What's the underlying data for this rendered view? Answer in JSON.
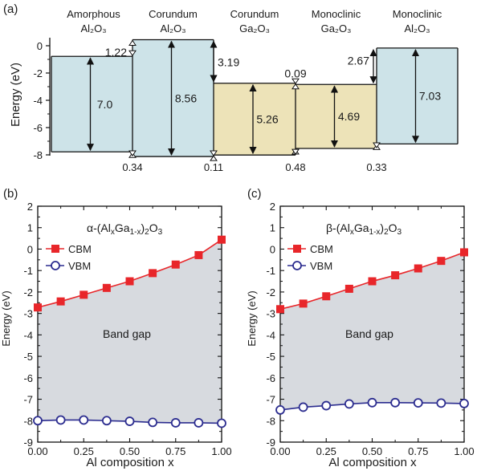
{
  "chart_data": [
    {
      "panel": "(a)",
      "type": "bar",
      "ylabel": "Energy (eV)",
      "ylim": [
        -8.4,
        0.5
      ],
      "yticks": [
        "0",
        "-2",
        "-4",
        "-6",
        "-8"
      ],
      "materials": [
        {
          "label_top": "Amorphous",
          "label_bottom": "Al₂O₃",
          "cbm": -0.78,
          "vbm": -7.78,
          "gap_label": "7.0",
          "color": "#cde3e8"
        },
        {
          "label_top": "Corundum",
          "label_bottom": "Al₂O₃",
          "cbm": 0.44,
          "vbm": -8.12,
          "gap_label": "8.56",
          "color": "#cde3e8"
        },
        {
          "label_top": "Corundum",
          "label_bottom": "Ga₂O₃",
          "cbm": -2.75,
          "vbm": -8.01,
          "gap_label": "5.26",
          "color": "#ede3b8"
        },
        {
          "label_top": "Monoclinic",
          "label_bottom": "Ga₂O₃",
          "cbm": -2.84,
          "vbm": -7.53,
          "gap_label": "4.69",
          "color": "#ede3b8"
        },
        {
          "label_top": "Monoclinic",
          "label_bottom": "Al₂O₃",
          "cbm": -0.17,
          "vbm": -7.2,
          "gap_label": "7.03",
          "color": "#cde3e8"
        }
      ],
      "offset_labels": {
        "cbm": [
          "1.22",
          "3.19",
          "0.09",
          "2.67"
        ],
        "vbm": [
          "0.34",
          "0.11",
          "0.48",
          "0.33"
        ]
      }
    },
    {
      "panel": "(b)",
      "type": "line",
      "title": "α-(AlₓGa₁₋ₓ)₂O₃",
      "title_prefix": "α-(Al",
      "title_sub1": "x",
      "title_mid": "Ga",
      "title_sub2": "1-x",
      "title_mid2": ")",
      "title_sub3": "2",
      "title_end": "O",
      "title_sub4": "3",
      "xlabel": "Al composition x",
      "ylabel": "Energy (eV)",
      "xlim": [
        0,
        1
      ],
      "ylim": [
        -9,
        2
      ],
      "xticks": [
        "0.00",
        "0.25",
        "0.50",
        "0.75",
        "1.00"
      ],
      "yticks": [
        "2",
        "1",
        "0",
        "-1",
        "-2",
        "-3",
        "-4",
        "-5",
        "-6",
        "-7",
        "-8",
        "-9"
      ],
      "x": [
        0,
        0.125,
        0.25,
        0.375,
        0.5,
        0.625,
        0.75,
        0.875,
        1.0
      ],
      "series": [
        {
          "name": "CBM",
          "values": [
            -2.72,
            -2.44,
            -2.13,
            -1.81,
            -1.5,
            -1.12,
            -0.72,
            -0.28,
            0.44
          ],
          "color": "#e8262a",
          "marker": "square"
        },
        {
          "name": "VBM",
          "values": [
            -8.0,
            -7.97,
            -7.97,
            -8.0,
            -8.03,
            -8.08,
            -8.1,
            -8.1,
            -8.12
          ],
          "color": "#2b2c8f",
          "marker": "circle"
        }
      ],
      "annotation": "Band gap",
      "fill_color": "#d7dadf"
    },
    {
      "panel": "(c)",
      "type": "line",
      "title": "β-(AlₓGa₁₋ₓ)₂O₃",
      "title_prefix": "β-(Al",
      "title_sub1": "x",
      "title_mid": "Ga",
      "title_sub2": "1-x",
      "title_mid2": ")",
      "title_sub3": "2",
      "title_end": "O",
      "title_sub4": "3",
      "xlabel": "Al composition x",
      "ylabel": "Energy (eV)",
      "xlim": [
        0,
        1
      ],
      "ylim": [
        -9,
        2
      ],
      "xticks": [
        "0.00",
        "0.25",
        "0.50",
        "0.75",
        "1.00"
      ],
      "yticks": [
        "2",
        "1",
        "0",
        "-1",
        "-2",
        "-3",
        "-4",
        "-5",
        "-6",
        "-7",
        "-8",
        "-9"
      ],
      "x": [
        0,
        0.125,
        0.25,
        0.375,
        0.5,
        0.625,
        0.75,
        0.875,
        1.0
      ],
      "series": [
        {
          "name": "CBM",
          "values": [
            -2.8,
            -2.54,
            -2.2,
            -1.85,
            -1.5,
            -1.22,
            -0.9,
            -0.55,
            -0.15
          ],
          "color": "#e8262a",
          "marker": "square"
        },
        {
          "name": "VBM",
          "values": [
            -7.5,
            -7.37,
            -7.3,
            -7.22,
            -7.16,
            -7.16,
            -7.17,
            -7.18,
            -7.2
          ],
          "color": "#2b2c8f",
          "marker": "circle"
        }
      ],
      "annotation": "Band gap",
      "fill_color": "#d7dadf"
    }
  ]
}
